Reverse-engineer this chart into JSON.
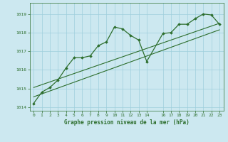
{
  "title": "Graphe pression niveau de la mer (hPa)",
  "bg_color": "#cce8f0",
  "grid_color": "#9fcfdc",
  "line_color": "#2d6e2d",
  "xlim": [
    -0.5,
    23.5
  ],
  "ylim": [
    1013.8,
    1019.6
  ],
  "yticks": [
    1014,
    1015,
    1016,
    1017,
    1018,
    1019
  ],
  "xticks": [
    0,
    1,
    2,
    3,
    4,
    5,
    6,
    7,
    8,
    9,
    10,
    11,
    12,
    13,
    14,
    16,
    17,
    18,
    19,
    20,
    21,
    22,
    23
  ],
  "main_series_x": [
    0,
    1,
    2,
    3,
    4,
    5,
    6,
    7,
    8,
    9,
    10,
    11,
    12,
    13,
    14,
    16,
    17,
    18,
    19,
    20,
    21,
    22,
    23
  ],
  "main_series_y": [
    1014.2,
    1014.8,
    1015.05,
    1015.45,
    1016.1,
    1016.65,
    1016.65,
    1016.75,
    1017.3,
    1017.5,
    1018.3,
    1018.2,
    1017.85,
    1017.6,
    1016.45,
    1017.95,
    1018.0,
    1018.45,
    1018.45,
    1018.75,
    1019.0,
    1018.95,
    1018.45
  ],
  "trend_x": [
    0,
    23
  ],
  "trend_y": [
    1014.55,
    1018.15
  ],
  "trend2_x": [
    0,
    23
  ],
  "trend2_y": [
    1015.05,
    1018.5
  ]
}
